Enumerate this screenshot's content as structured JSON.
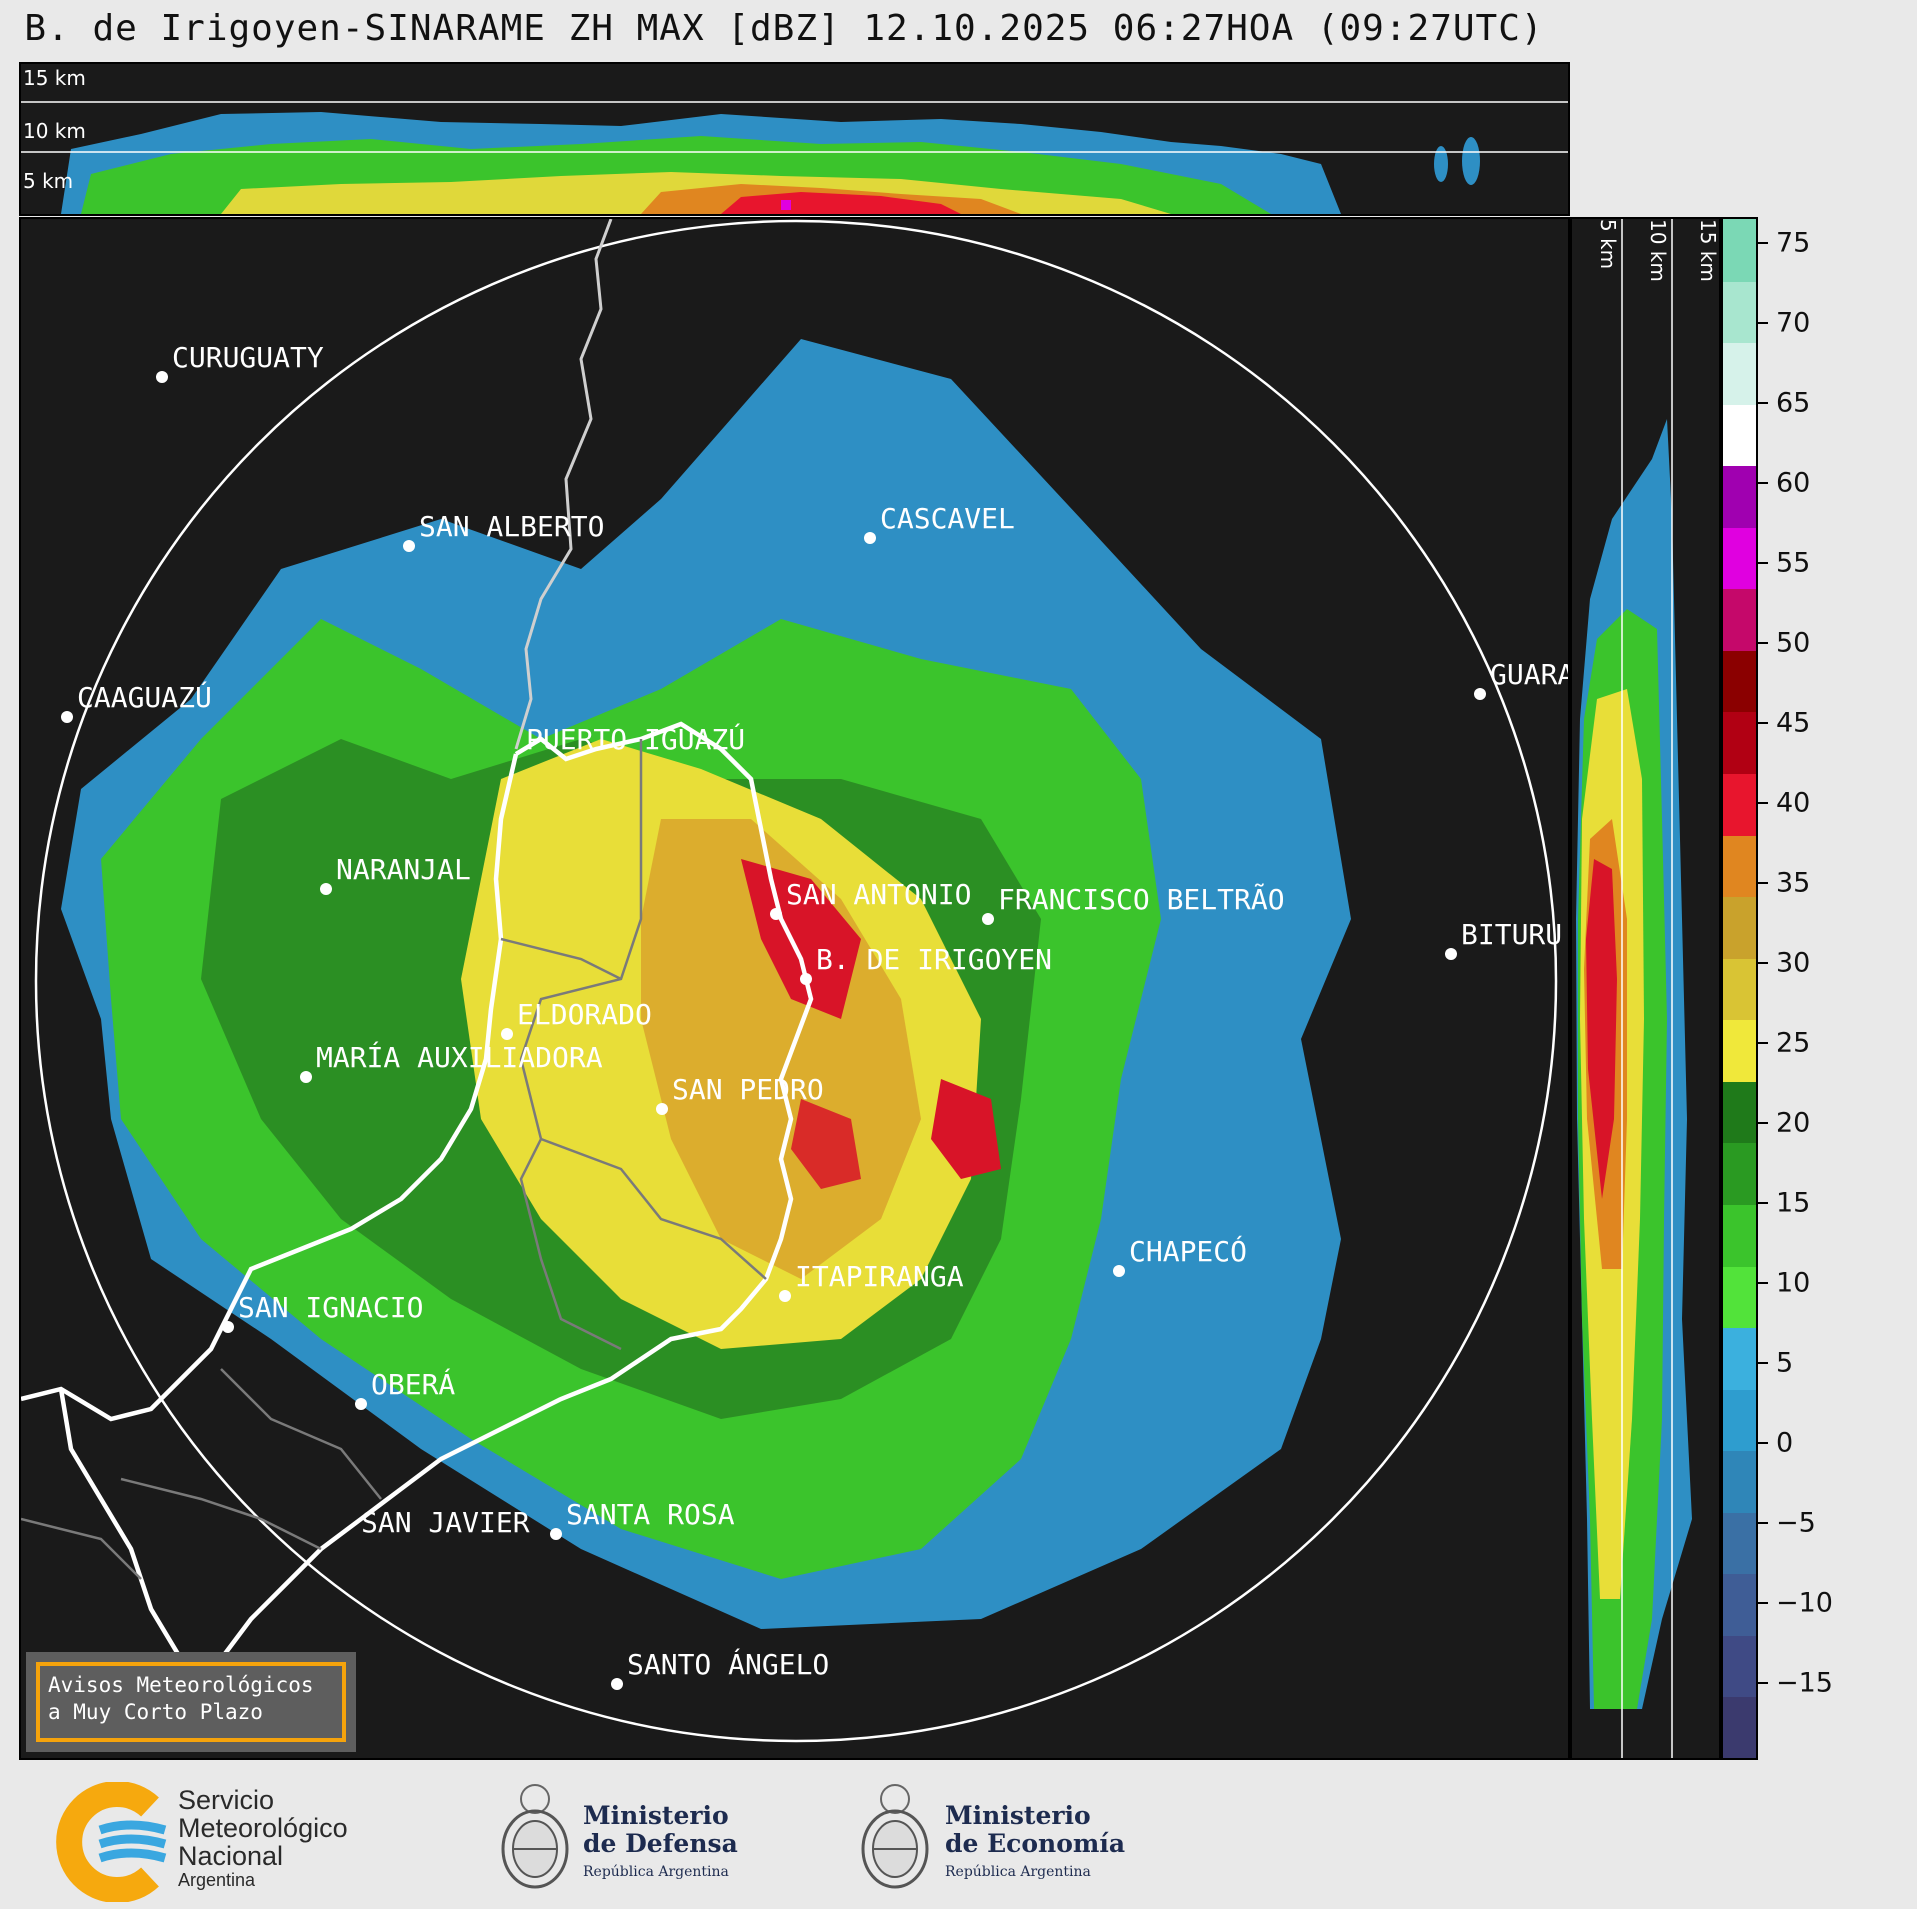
{
  "title": "B. de Irigoyen-SINARAME ZH MAX [dBZ] 12.10.2025 06:27HOA (09:27UTC)",
  "height_labels": {
    "h15": "15 km",
    "h10": "10 km",
    "h5": "5 km"
  },
  "cities": [
    {
      "name": "CURUGUATY",
      "id": "curuguaty"
    },
    {
      "name": "SAN ALBERTO",
      "id": "san-alberto"
    },
    {
      "name": "CASCAVEL",
      "id": "cascavel"
    },
    {
      "name": "CAAGUAZÚ",
      "id": "caaguazu"
    },
    {
      "name": "GUARA",
      "id": "guara"
    },
    {
      "name": "PUERTO IGUAZÚ",
      "id": "puerto-iguazu"
    },
    {
      "name": "NARANJAL",
      "id": "naranjal"
    },
    {
      "name": "SAN ANTONIO",
      "id": "san-antonio"
    },
    {
      "name": "FRANCISCO BELTRÃO",
      "id": "francisco-beltrao"
    },
    {
      "name": "BITURU",
      "id": "bituru"
    },
    {
      "name": "B. DE IRIGOYEN",
      "id": "b-de-irigoyen"
    },
    {
      "name": "ELDORADO",
      "id": "eldorado"
    },
    {
      "name": "MARÍA AUXILIADORA",
      "id": "maria-auxiliadora"
    },
    {
      "name": "SAN PEDRO",
      "id": "san-pedro"
    },
    {
      "name": "CHAPECÓ",
      "id": "chapeco"
    },
    {
      "name": "ITAPIRANGA",
      "id": "itapiranga"
    },
    {
      "name": "SAN IGNACIO",
      "id": "san-ignacio"
    },
    {
      "name": "OBERÁ",
      "id": "obera"
    },
    {
      "name": "SAN JAVIER",
      "id": "san-javier"
    },
    {
      "name": "SANTA ROSA",
      "id": "santa-rosa"
    },
    {
      "name": "SANTO ÁNGELO",
      "id": "santo-angelo"
    }
  ],
  "colorbar": {
    "unit": "dBZ",
    "ticks": [
      "75",
      "70",
      "65",
      "60",
      "55",
      "50",
      "45",
      "40",
      "35",
      "30",
      "25",
      "20",
      "15",
      "10",
      "5",
      "0",
      "−5",
      "−10",
      "−15"
    ],
    "colors": [
      "#3b3a6e",
      "#3f4a85",
      "#3f5d96",
      "#3a70a5",
      "#2f86b8",
      "#2e9dcf",
      "#3bb0de",
      "#52e33a",
      "#3bc42c",
      "#2a9a22",
      "#1f7a1a",
      "#f0e83a",
      "#d9c434",
      "#c9a22c",
      "#e08620",
      "#e8152d",
      "#b10013",
      "#8b0000",
      "#c5086a",
      "#e000e0",
      "#a000b0",
      "#ffffff",
      "#d6f2ea",
      "#a8e6cf",
      "#7bd8b5"
    ]
  },
  "avisos": {
    "line1": "Avisos Meteorológicos",
    "line2": "a Muy Corto Plazo"
  },
  "logos": {
    "smn": {
      "line1": "Servicio",
      "line2": "Meteorológico",
      "line3": "Nacional",
      "line4": "Argentina"
    },
    "defensa": {
      "line1": "Ministerio",
      "line2": "de Defensa",
      "sub": "República Argentina"
    },
    "economia": {
      "line1": "Ministerio",
      "line2": "de Economía",
      "sub": "República Argentina"
    }
  }
}
